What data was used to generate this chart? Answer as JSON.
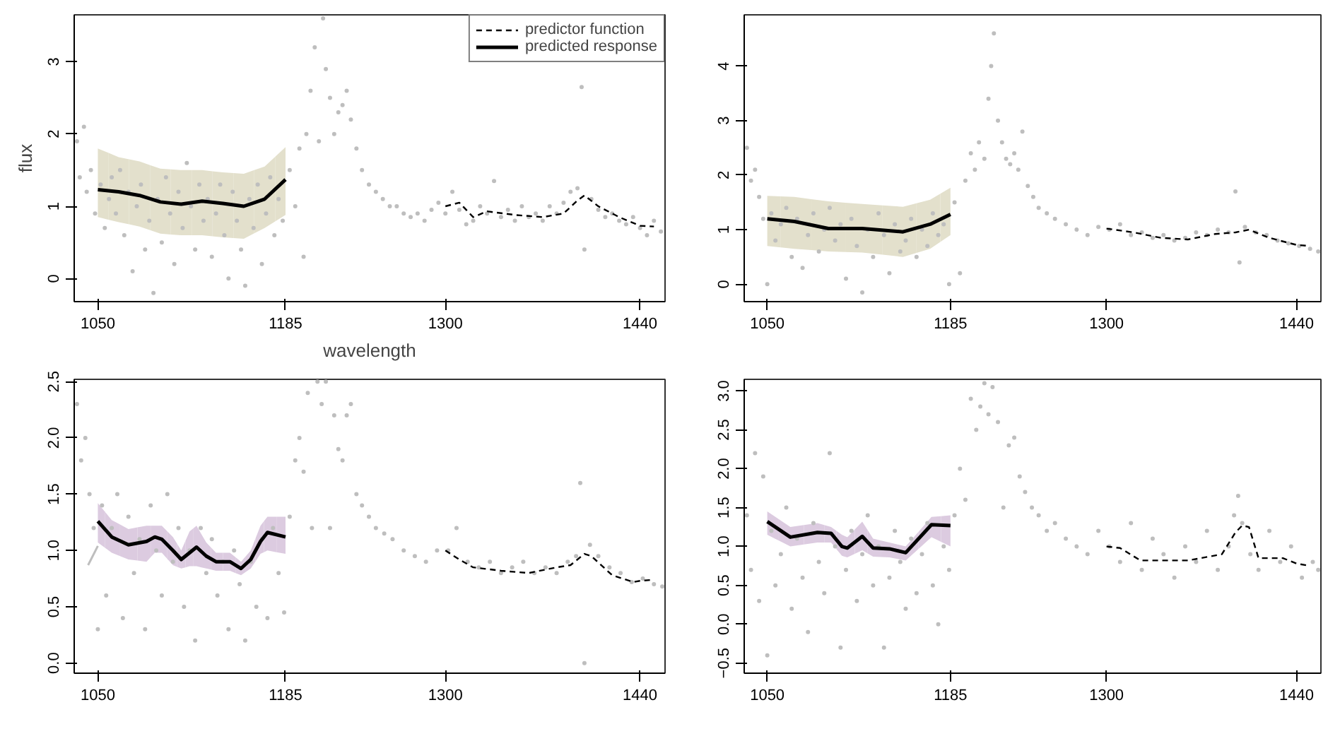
{
  "chart_data": [
    {
      "type": "line",
      "xlabel": "wavelength",
      "ylabel": "flux",
      "xlim": [
        1033,
        1458
      ],
      "ylim": [
        -0.32,
        3.65
      ],
      "xticks": [
        1050,
        1185,
        1300,
        1440
      ],
      "yticks": [
        0,
        1,
        2,
        3
      ],
      "legend": "top right",
      "series": [
        {
          "type": "scatter",
          "marker": "circle",
          "color": "#bebebe",
          "x": [
            1035,
            1037,
            1040,
            1042,
            1045,
            1048,
            1052,
            1055,
            1058,
            1060,
            1063,
            1066,
            1069,
            1072,
            1075,
            1078,
            1081,
            1084,
            1087,
            1090,
            1093,
            1096,
            1099,
            1102,
            1105,
            1108,
            1111,
            1114,
            1117,
            1120,
            1123,
            1126,
            1129,
            1132,
            1135,
            1138,
            1141,
            1144,
            1147,
            1150,
            1153,
            1156,
            1159,
            1162,
            1165,
            1168,
            1171,
            1174,
            1177,
            1180,
            1183,
            1188,
            1192,
            1195,
            1198,
            1200,
            1203,
            1206,
            1209,
            1212,
            1214,
            1217,
            1220,
            1223,
            1226,
            1229,
            1232,
            1236,
            1240,
            1245,
            1250,
            1255,
            1260,
            1265,
            1270,
            1275,
            1280,
            1285,
            1290,
            1295,
            1300,
            1305,
            1310,
            1315,
            1320,
            1325,
            1330,
            1335,
            1340,
            1345,
            1350,
            1355,
            1360,
            1365,
            1370,
            1375,
            1380,
            1385,
            1390,
            1395,
            1398,
            1400,
            1405,
            1410,
            1415,
            1420,
            1425,
            1430,
            1435,
            1440,
            1445,
            1450,
            1455
          ],
          "values": [
            1.9,
            1.4,
            2.1,
            1.2,
            1.5,
            0.9,
            1.3,
            0.7,
            1.1,
            1.4,
            0.9,
            1.5,
            0.6,
            1.2,
            0.1,
            1.0,
            1.3,
            0.4,
            0.8,
            -0.2,
            1.1,
            0.5,
            1.4,
            0.9,
            0.2,
            1.2,
            0.7,
            1.6,
            1.0,
            0.4,
            1.3,
            0.8,
            1.1,
            0.3,
            0.9,
            1.3,
            0.6,
            0.0,
            1.2,
            0.8,
            0.4,
            -0.1,
            1.1,
            0.7,
            1.3,
            0.2,
            0.9,
            1.4,
            0.6,
            1.1,
            0.8,
            1.5,
            1.0,
            1.8,
            0.3,
            2.0,
            2.6,
            3.2,
            1.9,
            3.6,
            2.9,
            2.5,
            2.0,
            2.3,
            2.4,
            2.6,
            2.2,
            1.8,
            1.5,
            1.3,
            1.2,
            1.1,
            1.0,
            1.0,
            0.9,
            0.85,
            0.9,
            0.8,
            0.95,
            1.05,
            0.9,
            1.2,
            0.95,
            0.75,
            0.8,
            1.0,
            0.9,
            1.35,
            0.85,
            0.95,
            0.8,
            1.0,
            0.85,
            0.9,
            0.8,
            1.0,
            0.9,
            1.05,
            1.2,
            1.25,
            2.65,
            0.4,
            1.1,
            0.95,
            0.85,
            0.9,
            0.8,
            0.75,
            0.85,
            0.7,
            0.6,
            0.8,
            0.65
          ]
        },
        {
          "type": "line",
          "name": "predicted response",
          "color": "#000000",
          "colors": [
            "#e3e0cc",
            "#e3e0cc",
            "#e3e0cc",
            "#e3e0cc",
            "#e3e0cc",
            "#e3e0cc",
            "#e3e0cc",
            "#e3e0cc",
            "#e3e0cc",
            "#e3e0cc"
          ],
          "x": [
            1050,
            1065,
            1080,
            1095,
            1110,
            1125,
            1140,
            1155,
            1170,
            1185
          ],
          "values": [
            1.23,
            1.2,
            1.15,
            1.06,
            1.03,
            1.07,
            1.04,
            1.0,
            1.1,
            1.37
          ],
          "lower": [
            0.85,
            0.78,
            0.72,
            0.62,
            0.6,
            0.6,
            0.57,
            0.55,
            0.7,
            0.88
          ],
          "upper": [
            1.8,
            1.68,
            1.62,
            1.52,
            1.5,
            1.5,
            1.47,
            1.45,
            1.55,
            1.82
          ]
        },
        {
          "type": "line",
          "name": "predictor function",
          "color": "#000000",
          "line_style": "dashed",
          "x": [
            1300,
            1310,
            1320,
            1330,
            1350,
            1370,
            1385,
            1395,
            1400,
            1410,
            1425,
            1440,
            1450
          ],
          "values": [
            1.0,
            1.05,
            0.85,
            0.93,
            0.88,
            0.85,
            0.9,
            1.08,
            1.15,
            1.0,
            0.85,
            0.73,
            0.72
          ]
        }
      ]
    },
    {
      "type": "line",
      "xlim": [
        1033,
        1458
      ],
      "ylim": [
        -0.32,
        4.94
      ],
      "xticks": [
        1050,
        1185,
        1300,
        1440
      ],
      "yticks": [
        0,
        1,
        2,
        3,
        4
      ],
      "series": [
        {
          "type": "scatter",
          "marker": "circle",
          "color": "#bebebe",
          "x": [
            1035,
            1038,
            1041,
            1044,
            1047,
            1050,
            1053,
            1056,
            1060,
            1064,
            1068,
            1072,
            1076,
            1080,
            1084,
            1088,
            1092,
            1096,
            1100,
            1104,
            1108,
            1112,
            1116,
            1120,
            1124,
            1128,
            1132,
            1136,
            1140,
            1144,
            1148,
            1152,
            1156,
            1160,
            1164,
            1168,
            1172,
            1176,
            1180,
            1184,
            1188,
            1192,
            1196,
            1200,
            1203,
            1206,
            1210,
            1213,
            1215,
            1217,
            1220,
            1223,
            1226,
            1229,
            1232,
            1235,
            1238,
            1242,
            1246,
            1250,
            1256,
            1262,
            1270,
            1278,
            1286,
            1294,
            1302,
            1310,
            1318,
            1326,
            1334,
            1342,
            1350,
            1358,
            1366,
            1374,
            1382,
            1390,
            1395,
            1398,
            1402,
            1410,
            1418,
            1426,
            1434,
            1442,
            1450,
            1456
          ],
          "values": [
            2.5,
            1.9,
            2.1,
            1.6,
            1.2,
            0.0,
            1.3,
            0.8,
            1.1,
            1.4,
            0.5,
            1.2,
            0.3,
            0.9,
            1.3,
            0.6,
            1.0,
            1.4,
            0.8,
            1.1,
            0.1,
            1.2,
            0.7,
            -0.15,
            1.0,
            0.5,
            1.3,
            0.9,
            0.2,
            1.1,
            0.6,
            0.8,
            1.2,
            0.5,
            1.0,
            0.7,
            1.3,
            0.9,
            1.1,
            0.0,
            1.5,
            0.2,
            1.9,
            2.4,
            2.1,
            2.6,
            2.3,
            3.4,
            4.0,
            4.6,
            3.0,
            2.6,
            2.3,
            2.2,
            2.4,
            2.1,
            2.8,
            1.8,
            1.6,
            1.4,
            1.3,
            1.2,
            1.1,
            1.0,
            0.9,
            1.05,
            1.0,
            1.1,
            0.9,
            0.95,
            0.85,
            0.9,
            0.8,
            0.85,
            0.95,
            0.9,
            1.0,
            0.95,
            1.7,
            0.4,
            1.05,
            0.95,
            0.9,
            0.8,
            0.75,
            0.7,
            0.65,
            0.6
          ]
        },
        {
          "type": "line",
          "color": "#000000",
          "colors": [
            "#e3e0cc",
            "#e3e0cc",
            "#e3e0cc",
            "#e3e0cc",
            "#e3e0cc",
            "#e3e0cc",
            "#e3e0cc"
          ],
          "x": [
            1050,
            1070,
            1095,
            1120,
            1150,
            1170,
            1185
          ],
          "values": [
            1.2,
            1.15,
            1.02,
            1.02,
            0.96,
            1.1,
            1.28
          ],
          "lower": [
            0.7,
            0.65,
            0.6,
            0.58,
            0.5,
            0.65,
            0.9
          ],
          "upper": [
            1.62,
            1.6,
            1.52,
            1.47,
            1.42,
            1.55,
            1.77
          ]
        },
        {
          "type": "line",
          "color": "#000000",
          "line_style": "dashed",
          "x": [
            1300,
            1320,
            1340,
            1360,
            1380,
            1395,
            1405,
            1420,
            1440,
            1450
          ],
          "values": [
            1.02,
            0.95,
            0.85,
            0.82,
            0.92,
            0.95,
            1.0,
            0.85,
            0.72,
            0.7
          ]
        }
      ]
    },
    {
      "type": "line",
      "xlim": [
        1033,
        1458
      ],
      "ylim": [
        -0.09,
        2.52
      ],
      "xticks": [
        1050,
        1185,
        1300,
        1440
      ],
      "yticks": [
        {
          "value": 0,
          "label": "0.0"
        },
        0.5,
        {
          "value": 1,
          "label": "1.0"
        },
        1.5,
        {
          "value": 2,
          "label": "2.0"
        },
        2.5
      ],
      "series": [
        {
          "type": "scatter",
          "marker": "circle",
          "color": "#bebebe",
          "x": [
            1035,
            1038,
            1041,
            1044,
            1047,
            1050,
            1053,
            1056,
            1060,
            1064,
            1068,
            1072,
            1076,
            1080,
            1084,
            1088,
            1092,
            1096,
            1100,
            1104,
            1108,
            1112,
            1116,
            1120,
            1124,
            1128,
            1132,
            1136,
            1140,
            1144,
            1148,
            1152,
            1156,
            1160,
            1164,
            1168,
            1172,
            1176,
            1180,
            1184,
            1188,
            1192,
            1195,
            1198,
            1201,
            1204,
            1208,
            1211,
            1214,
            1217,
            1220,
            1223,
            1226,
            1229,
            1232,
            1236,
            1240,
            1245,
            1250,
            1256,
            1262,
            1270,
            1278,
            1286,
            1294,
            1302,
            1308,
            1316,
            1324,
            1332,
            1340,
            1348,
            1356,
            1364,
            1372,
            1380,
            1388,
            1394,
            1397,
            1400,
            1404,
            1410,
            1418,
            1426,
            1434,
            1442,
            1450,
            1456
          ],
          "values": [
            2.3,
            1.8,
            2.0,
            1.5,
            1.2,
            0.3,
            1.4,
            0.6,
            1.2,
            1.5,
            0.4,
            1.3,
            0.8,
            1.1,
            0.3,
            1.4,
            1.0,
            0.6,
            1.5,
            0.9,
            1.2,
            0.5,
            1.0,
            0.2,
            1.2,
            0.8,
            1.1,
            0.6,
            0.9,
            0.3,
            1.0,
            0.7,
            0.2,
            0.9,
            0.5,
            1.1,
            0.4,
            1.2,
            0.8,
            0.45,
            1.3,
            1.8,
            2.0,
            1.7,
            2.4,
            1.2,
            2.5,
            2.3,
            2.5,
            1.2,
            2.2,
            1.9,
            1.8,
            2.2,
            2.3,
            1.5,
            1.4,
            1.3,
            1.2,
            1.15,
            1.1,
            1.0,
            0.95,
            0.9,
            1.0,
            1.0,
            1.2,
            0.9,
            0.85,
            0.9,
            0.8,
            0.85,
            0.9,
            0.8,
            0.85,
            0.8,
            0.9,
            0.95,
            1.6,
            0.0,
            1.05,
            0.95,
            0.85,
            0.8,
            0.72,
            0.75,
            0.7,
            0.68
          ]
        },
        {
          "type": "line",
          "color": "#bebebe",
          "x": [
            1043,
            1050
          ],
          "values": [
            0.87,
            1.04
          ]
        },
        {
          "type": "line",
          "color": "#000000",
          "colors": [
            "#dccbe0",
            "#dccbe0",
            "#dccbe0",
            "#dccbe0",
            "#dccbe0",
            "#dccbe0",
            "#dccbe0",
            "#dccbe0",
            "#dccbe0",
            "#dccbe0",
            "#dccbe0",
            "#dccbe0",
            "#dccbe0",
            "#dccbe0",
            "#dccbe0",
            "#dccbe0",
            "#dccbe0",
            "#dccbe0"
          ],
          "x": [
            1050,
            1060,
            1072,
            1085,
            1091,
            1096,
            1104,
            1110,
            1116,
            1121,
            1128,
            1135,
            1145,
            1153,
            1160,
            1167,
            1172,
            1185
          ],
          "values": [
            1.26,
            1.12,
            1.05,
            1.08,
            1.12,
            1.1,
            1.0,
            0.92,
            0.98,
            1.03,
            0.95,
            0.9,
            0.9,
            0.84,
            0.92,
            1.08,
            1.16,
            1.12
          ],
          "lower": [
            1.07,
            0.98,
            0.92,
            0.9,
            0.98,
            0.98,
            0.87,
            0.84,
            0.86,
            0.86,
            0.84,
            0.82,
            0.82,
            0.78,
            0.84,
            0.97,
            1.0,
            0.97
          ],
          "upper": [
            1.42,
            1.27,
            1.19,
            1.22,
            1.22,
            1.22,
            1.12,
            1.0,
            1.17,
            1.22,
            1.07,
            0.98,
            0.98,
            0.9,
            1.0,
            1.22,
            1.3,
            1.3
          ]
        },
        {
          "type": "line",
          "color": "#000000",
          "line_style": "dashed",
          "x": [
            1300,
            1310,
            1320,
            1340,
            1360,
            1380,
            1390,
            1400,
            1405,
            1420,
            1435,
            1440,
            1450
          ],
          "values": [
            1.0,
            0.92,
            0.85,
            0.82,
            0.8,
            0.85,
            0.87,
            0.97,
            0.95,
            0.78,
            0.72,
            0.73,
            0.74
          ]
        }
      ]
    },
    {
      "type": "line",
      "xlim": [
        1033,
        1458
      ],
      "ylim": [
        -0.63,
        3.15
      ],
      "xticks": [
        1050,
        1185,
        1300,
        1440
      ],
      "yticks": [
        -0.5,
        {
          "value": 0,
          "label": "0.0"
        },
        0.5,
        {
          "value": 1,
          "label": "1.0"
        },
        1.5,
        {
          "value": 2,
          "label": "2.0"
        },
        2.5,
        {
          "value": 3,
          "label": "3.0"
        }
      ],
      "series": [
        {
          "type": "scatter",
          "marker": "circle",
          "color": "#bebebe",
          "x": [
            1035,
            1038,
            1041,
            1044,
            1047,
            1050,
            1053,
            1056,
            1060,
            1064,
            1068,
            1072,
            1076,
            1080,
            1084,
            1088,
            1092,
            1096,
            1100,
            1104,
            1108,
            1112,
            1116,
            1120,
            1124,
            1128,
            1132,
            1136,
            1140,
            1144,
            1148,
            1152,
            1156,
            1160,
            1164,
            1168,
            1172,
            1176,
            1180,
            1184,
            1188,
            1192,
            1196,
            1200,
            1204,
            1207,
            1210,
            1213,
            1216,
            1220,
            1224,
            1228,
            1232,
            1236,
            1240,
            1245,
            1250,
            1256,
            1262,
            1270,
            1278,
            1286,
            1294,
            1302,
            1310,
            1318,
            1326,
            1334,
            1342,
            1350,
            1358,
            1366,
            1374,
            1382,
            1390,
            1394,
            1397,
            1400,
            1406,
            1412,
            1420,
            1428,
            1436,
            1444,
            1452,
            1456
          ],
          "values": [
            1.4,
            0.7,
            2.2,
            0.3,
            1.9,
            -0.4,
            1.2,
            0.5,
            0.9,
            1.5,
            0.2,
            1.1,
            0.6,
            -0.1,
            1.3,
            0.8,
            0.4,
            2.2,
            1.0,
            -0.3,
            0.7,
            1.2,
            0.3,
            0.9,
            1.4,
            0.5,
            1.0,
            -0.3,
            0.6,
            1.2,
            0.8,
            0.2,
            1.1,
            0.4,
            0.9,
            1.3,
            0.5,
            0.0,
            1.0,
            0.7,
            1.4,
            2.0,
            1.6,
            2.9,
            2.5,
            2.8,
            3.1,
            2.7,
            3.05,
            2.6,
            1.5,
            2.3,
            2.4,
            1.9,
            1.7,
            1.5,
            1.4,
            1.2,
            1.3,
            1.1,
            1.0,
            0.9,
            1.2,
            1.0,
            0.8,
            1.3,
            0.7,
            1.1,
            0.9,
            0.6,
            1.0,
            0.8,
            1.2,
            0.7,
            1.0,
            1.4,
            1.65,
            1.3,
            0.9,
            0.7,
            1.2,
            0.8,
            1.0,
            0.6,
            0.8,
            0.7
          ]
        },
        {
          "type": "line",
          "color": "#000000",
          "colors": [
            "#dccbe0",
            "#dccbe0",
            "#dccbe0",
            "#dccbe0",
            "#dccbe0",
            "#dccbe0",
            "#dccbe0",
            "#dccbe0",
            "#dccbe0",
            "#dccbe0",
            "#dccbe0",
            "#dccbe0"
          ],
          "x": [
            1050,
            1067,
            1087,
            1097,
            1105,
            1109,
            1120,
            1128,
            1140,
            1152,
            1171,
            1185
          ],
          "values": [
            1.32,
            1.12,
            1.18,
            1.17,
            1.0,
            0.98,
            1.13,
            0.98,
            0.97,
            0.92,
            1.28,
            1.27
          ],
          "lower": [
            1.15,
            1.0,
            1.05,
            1.05,
            0.88,
            0.86,
            0.95,
            0.87,
            0.86,
            0.82,
            1.12,
            1.0
          ],
          "upper": [
            1.45,
            1.25,
            1.3,
            1.25,
            1.15,
            1.12,
            1.32,
            1.1,
            1.05,
            1.0,
            1.38,
            1.4
          ]
        },
        {
          "type": "line",
          "color": "#000000",
          "line_style": "dashed",
          "x": [
            1300,
            1310,
            1325,
            1360,
            1385,
            1395,
            1400,
            1405,
            1412,
            1430,
            1440,
            1450
          ],
          "values": [
            1.0,
            0.98,
            0.82,
            0.82,
            0.9,
            1.18,
            1.27,
            1.25,
            0.85,
            0.85,
            0.78,
            0.75
          ]
        }
      ]
    }
  ]
}
